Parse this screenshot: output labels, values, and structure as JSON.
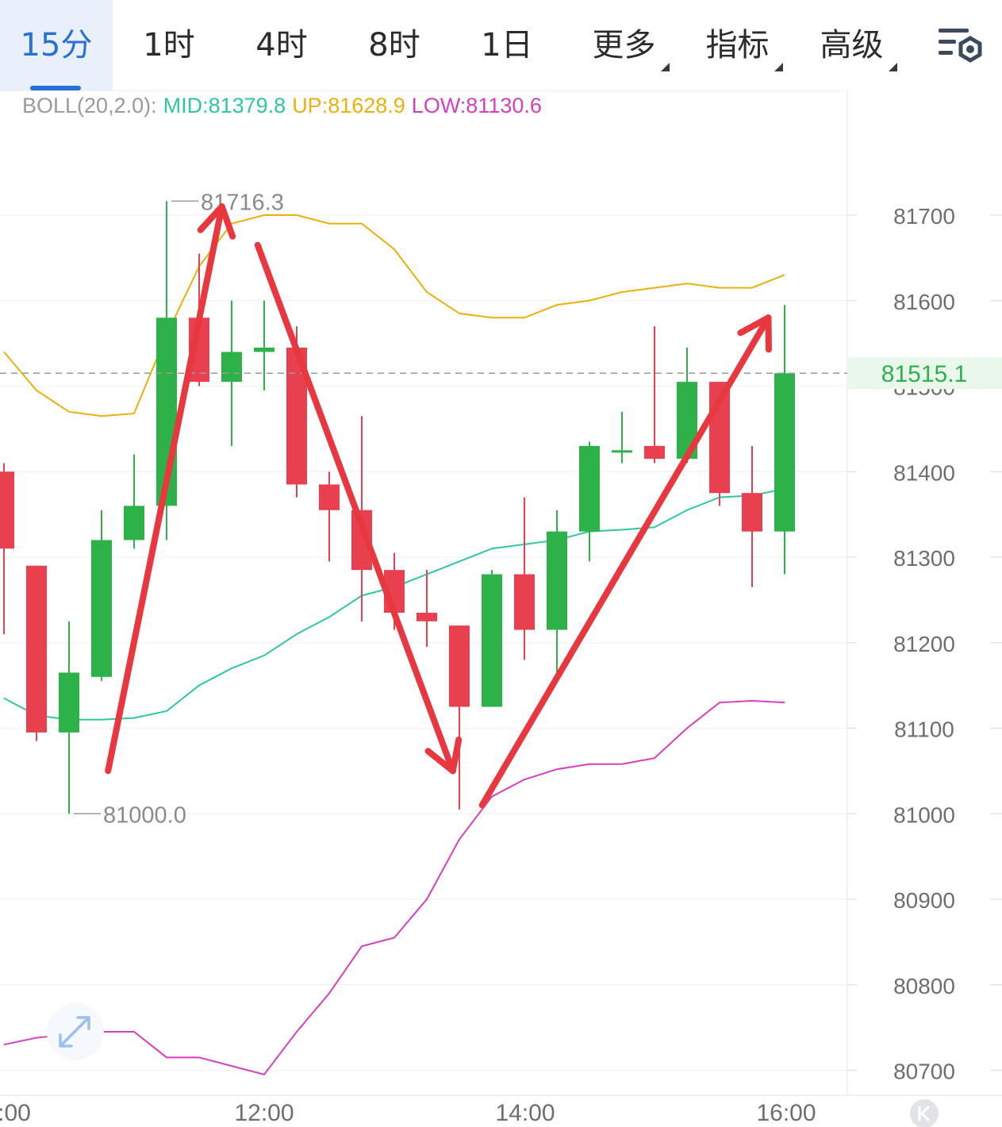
{
  "tabs": [
    {
      "label": "15分",
      "active": true
    },
    {
      "label": "1时"
    },
    {
      "label": "4时"
    },
    {
      "label": "8时"
    },
    {
      "label": "1日"
    },
    {
      "label": "更多",
      "dropdown": true
    },
    {
      "label": "指标",
      "dropdown": true
    },
    {
      "label": "高级",
      "dropdown": true
    }
  ],
  "settings_icon": "chart-settings-icon",
  "boll": {
    "name": "BOLL(20,2.0):",
    "mid": "MID:81379.8",
    "up": "UP:81628.9",
    "low": "LOW:81130.6"
  },
  "colors": {
    "up": "#2db24a",
    "down": "#e8404f",
    "mid": "#2ec7a0",
    "upper": "#e9b10c",
    "lower": "#d63fbf",
    "annotation": "#e8373f",
    "accent": "#2a6fd6",
    "current_price": "#2db24a"
  },
  "chart_data": {
    "type": "candlestick",
    "interval": "15分",
    "x_ticks": [
      ":00",
      "12:00",
      "14:00",
      "16:00"
    ],
    "y_ticks": [
      81700,
      81600,
      81500,
      81400,
      81300,
      81200,
      81100,
      81000,
      80900,
      80800,
      80700
    ],
    "ylim": [
      80680,
      81810
    ],
    "current_price": "81515.1",
    "high_label": "81716.3",
    "low_label": "81000.0",
    "candles": [
      {
        "o": 81400,
        "h": 81410,
        "l": 81210,
        "c": 81310
      },
      {
        "o": 81290,
        "h": 81290,
        "l": 81085,
        "c": 81095
      },
      {
        "o": 81095,
        "h": 81225,
        "l": 81000,
        "c": 81165
      },
      {
        "o": 81160,
        "h": 81355,
        "l": 81155,
        "c": 81320
      },
      {
        "o": 81320,
        "h": 81420,
        "l": 81310,
        "c": 81360
      },
      {
        "o": 81360,
        "h": 81716.3,
        "l": 81320,
        "c": 81580
      },
      {
        "o": 81580,
        "h": 81655,
        "l": 81500,
        "c": 81505
      },
      {
        "o": 81505,
        "h": 81600,
        "l": 81430,
        "c": 81540
      },
      {
        "o": 81540,
        "h": 81600,
        "l": 81495,
        "c": 81545
      },
      {
        "o": 81545,
        "h": 81570,
        "l": 81370,
        "c": 81385
      },
      {
        "o": 81385,
        "h": 81400,
        "l": 81295,
        "c": 81355
      },
      {
        "o": 81355,
        "h": 81465,
        "l": 81225,
        "c": 81285
      },
      {
        "o": 81285,
        "h": 81305,
        "l": 81215,
        "c": 81235
      },
      {
        "o": 81235,
        "h": 81285,
        "l": 81195,
        "c": 81225
      },
      {
        "o": 81220,
        "h": 81220,
        "l": 81005,
        "c": 81125
      },
      {
        "o": 81125,
        "h": 81285,
        "l": 81125,
        "c": 81280
      },
      {
        "o": 81280,
        "h": 81370,
        "l": 81180,
        "c": 81215
      },
      {
        "o": 81215,
        "h": 81355,
        "l": 81160,
        "c": 81330
      },
      {
        "o": 81330,
        "h": 81435,
        "l": 81295,
        "c": 81430
      },
      {
        "o": 81425,
        "h": 81470,
        "l": 81410,
        "c": 81425
      },
      {
        "o": 81430,
        "h": 81570,
        "l": 81410,
        "c": 81415
      },
      {
        "o": 81415,
        "h": 81545,
        "l": 81410,
        "c": 81505
      },
      {
        "o": 81505,
        "h": 81505,
        "l": 81360,
        "c": 81375
      },
      {
        "o": 81375,
        "h": 81430,
        "l": 81265,
        "c": 81330
      },
      {
        "o": 81330,
        "h": 81595,
        "l": 81280,
        "c": 81515.1
      }
    ],
    "upper_band": [
      81540,
      81495,
      81470,
      81465,
      81468,
      81560,
      81640,
      81690,
      81700,
      81700,
      81690,
      81690,
      81660,
      81610,
      81585,
      81580,
      81580,
      81595,
      81600,
      81610,
      81615,
      81620,
      81615,
      81615,
      81630
    ],
    "mid_band": [
      81135,
      81115,
      81110,
      81110,
      81112,
      81120,
      81150,
      81170,
      81185,
      81210,
      81230,
      81255,
      81265,
      81280,
      81295,
      81310,
      81315,
      81320,
      81330,
      81332,
      81335,
      81355,
      81370,
      81372,
      81380
    ],
    "lower_band": [
      80730,
      80738,
      80742,
      80745,
      80745,
      80715,
      80715,
      80705,
      80695,
      80745,
      80790,
      80845,
      80855,
      80900,
      80970,
      81020,
      81040,
      81052,
      81058,
      81058,
      81065,
      81100,
      81130,
      81132,
      81130
    ],
    "annotations": [
      {
        "from": [
          3.2,
          81050
        ],
        "to": [
          6.7,
          81710
        ]
      },
      {
        "from": [
          7.8,
          81665
        ],
        "to": [
          13.8,
          81050
        ]
      },
      {
        "from": [
          14.7,
          81010
        ],
        "to": [
          23.5,
          81580
        ]
      }
    ]
  }
}
